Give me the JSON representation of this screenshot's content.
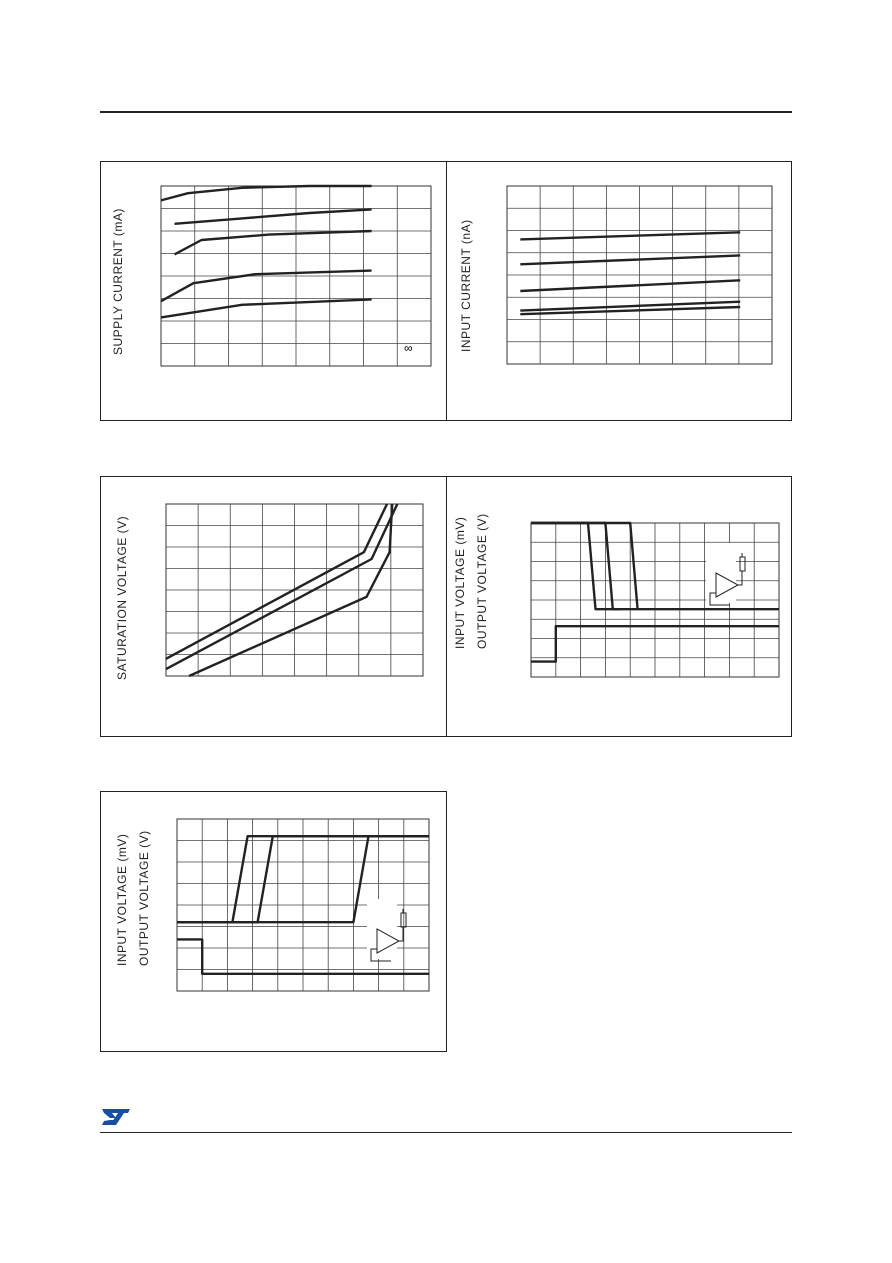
{
  "page": {
    "logo_icon": "st-logo"
  },
  "panels": [
    {
      "id": "supply-current",
      "ylabel": "SUPPLY CURRENT (mA)",
      "note": "∞"
    },
    {
      "id": "input-current",
      "ylabel": "INPUT CURRENT (nA)"
    },
    {
      "id": "saturation-voltage",
      "ylabel": "SATURATION VOLTAGE (V)"
    },
    {
      "id": "response-1",
      "ylabel1": "INPUT VOLTAGE (mV)",
      "ylabel2": "OUTPUT VOLTAGE (V)"
    },
    {
      "id": "response-2",
      "ylabel1": "INPUT VOLTAGE (mV)",
      "ylabel2": "OUTPUT VOLTAGE (V)"
    }
  ],
  "chart_data": [
    {
      "type": "line",
      "title": "",
      "ylabel": "SUPPLY CURRENT (mA)",
      "xlabel": "",
      "grid": true,
      "series": [
        {
          "x": [
            0,
            0.1,
            0.3,
            0.55,
            0.78
          ],
          "y": [
            0.92,
            0.96,
            0.99,
            1.0,
            1.0
          ]
        },
        {
          "x": [
            0.05,
            0.3,
            0.55,
            0.78
          ],
          "y": [
            0.79,
            0.82,
            0.85,
            0.87
          ]
        },
        {
          "x": [
            0.05,
            0.15,
            0.4,
            0.78
          ],
          "y": [
            0.62,
            0.7,
            0.73,
            0.75
          ]
        },
        {
          "x": [
            0.0,
            0.12,
            0.35,
            0.78
          ],
          "y": [
            0.36,
            0.46,
            0.51,
            0.53
          ]
        },
        {
          "x": [
            0.0,
            0.3,
            0.78
          ],
          "y": [
            0.27,
            0.34,
            0.37
          ]
        }
      ]
    },
    {
      "type": "line",
      "title": "",
      "ylabel": "INPUT CURRENT (nA)",
      "xlabel": "",
      "grid": true,
      "series": [
        {
          "x": [
            0.05,
            0.88
          ],
          "y": [
            0.7,
            0.74
          ]
        },
        {
          "x": [
            0.05,
            0.88
          ],
          "y": [
            0.56,
            0.61
          ]
        },
        {
          "x": [
            0.05,
            0.88
          ],
          "y": [
            0.41,
            0.47
          ]
        },
        {
          "x": [
            0.05,
            0.88
          ],
          "y": [
            0.3,
            0.35
          ]
        },
        {
          "x": [
            0.05,
            0.88
          ],
          "y": [
            0.28,
            0.32
          ]
        }
      ]
    },
    {
      "type": "line",
      "title": "",
      "ylabel": "SATURATION VOLTAGE (V)",
      "xlabel": "",
      "grid": true,
      "series": [
        {
          "x": [
            0,
            0.77,
            0.86
          ],
          "y": [
            0.1,
            0.72,
            1.0
          ]
        },
        {
          "x": [
            0,
            0.8,
            0.9
          ],
          "y": [
            0.04,
            0.68,
            1.0
          ]
        },
        {
          "x": [
            0.09,
            0.78,
            0.87,
            0.88
          ],
          "y": [
            0.0,
            0.46,
            0.72,
            1.0
          ]
        }
      ]
    },
    {
      "type": "line",
      "title": "",
      "ylabel": "INPUT VOLTAGE (mV) / OUTPUT VOLTAGE (V)",
      "xlabel": "",
      "grid": true,
      "series": [
        {
          "x": [
            0,
            0.23,
            0.26,
            0.36
          ],
          "y": [
            1.0,
            1.0,
            0.44,
            0.44
          ]
        },
        {
          "x": [
            0,
            0.3,
            0.33,
            0.43
          ],
          "y": [
            1.0,
            1.0,
            0.44,
            0.44
          ]
        },
        {
          "x": [
            0,
            0.4,
            0.43,
            1.0
          ],
          "y": [
            1.0,
            1.0,
            0.44,
            0.44
          ]
        },
        {
          "x": [
            0,
            0.1,
            0.1,
            1.0
          ],
          "y": [
            0.1,
            0.1,
            0.33,
            0.33
          ]
        }
      ]
    },
    {
      "type": "line",
      "title": "",
      "ylabel": "INPUT VOLTAGE (mV) / OUTPUT VOLTAGE (V)",
      "xlabel": "",
      "grid": true,
      "series": [
        {
          "x": [
            0,
            0.22,
            0.28,
            1.0
          ],
          "y": [
            0.4,
            0.4,
            0.9,
            0.9
          ]
        },
        {
          "x": [
            0,
            0.32,
            0.38,
            1.0
          ],
          "y": [
            0.4,
            0.4,
            0.9,
            0.9
          ]
        },
        {
          "x": [
            0,
            0.7,
            0.76,
            1.0
          ],
          "y": [
            0.4,
            0.4,
            0.9,
            0.9
          ]
        },
        {
          "x": [
            0,
            0.1,
            0.1,
            1.0
          ],
          "y": [
            0.3,
            0.3,
            0.1,
            0.1
          ]
        }
      ]
    }
  ]
}
